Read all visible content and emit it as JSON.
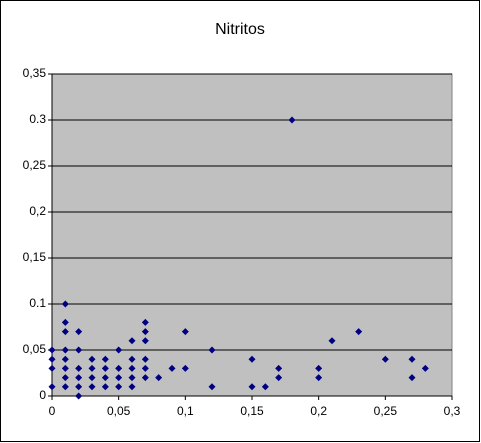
{
  "chart_data": {
    "type": "scatter",
    "title": "Nitritos",
    "xlim": [
      0,
      0.3
    ],
    "ylim": [
      0,
      0.35
    ],
    "xticks": [
      0,
      {
        "value": 0.05,
        "label": "0,05"
      },
      {
        "value": 0.1,
        "label": "0,1"
      },
      {
        "value": 0.15,
        "label": "0,15"
      },
      {
        "value": 0.2,
        "label": "0,2"
      },
      {
        "value": 0.25,
        "label": "0,25"
      },
      {
        "value": 0.3,
        "label": "0,3"
      }
    ],
    "yticks": [
      0,
      {
        "value": 0.05,
        "label": "0,05"
      },
      {
        "value": 0.1,
        "label": "0.1"
      },
      {
        "value": 0.15,
        "label": "0,15"
      },
      {
        "value": 0.2,
        "label": "0,2"
      },
      {
        "value": 0.25,
        "label": "0,25"
      },
      {
        "value": 0.3,
        "label": "0.3"
      },
      {
        "value": 0.35,
        "label": "0,35"
      }
    ],
    "grid": true,
    "color": "#000080",
    "x": [
      0,
      0,
      0,
      0,
      0.01,
      0.01,
      0.01,
      0.01,
      0.01,
      0.01,
      0.01,
      0.01,
      0.02,
      0.02,
      0.02,
      0.02,
      0.02,
      0.02,
      0.03,
      0.03,
      0.03,
      0.03,
      0.04,
      0.04,
      0.04,
      0.04,
      0.05,
      0.05,
      0.05,
      0.05,
      0.06,
      0.06,
      0.06,
      0.06,
      0.06,
      0.07,
      0.07,
      0.07,
      0.07,
      0.07,
      0.07,
      0.08,
      0.09,
      0.1,
      0.1,
      0.12,
      0.12,
      0.15,
      0.15,
      0.16,
      0.17,
      0.17,
      0.18,
      0.2,
      0.2,
      0.21,
      0.23,
      0.25,
      0.27,
      0.27,
      0.28
    ],
    "values": [
      0.05,
      0.04,
      0.03,
      0.01,
      0.1,
      0.08,
      0.07,
      0.05,
      0.04,
      0.03,
      0.02,
      0.01,
      0.07,
      0.05,
      0.03,
      0.02,
      0.01,
      0,
      0.04,
      0.03,
      0.02,
      0.01,
      0.04,
      0.03,
      0.02,
      0.01,
      0.05,
      0.03,
      0.02,
      0.01,
      0.06,
      0.04,
      0.03,
      0.02,
      0.01,
      0.08,
      0.07,
      0.06,
      0.04,
      0.03,
      0.02,
      0.02,
      0.03,
      0.07,
      0.03,
      0.05,
      0.01,
      0.04,
      0.01,
      0.01,
      0.03,
      0.02,
      0.3,
      0.03,
      0.02,
      0.06,
      0.07,
      0.04,
      0.04,
      0.02,
      0.03
    ]
  }
}
